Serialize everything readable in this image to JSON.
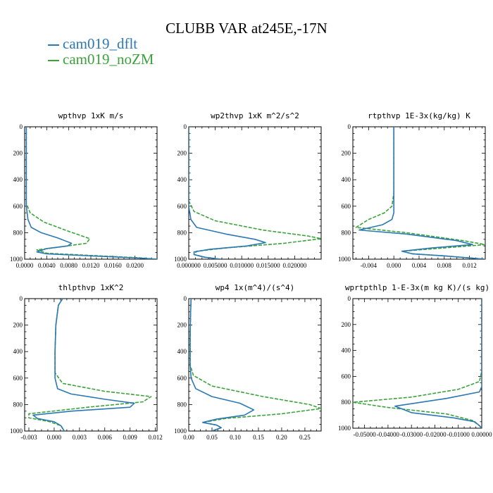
{
  "title": "CLUBB VAR at245E,-17N",
  "legend": [
    {
      "label": "cam019_dflt",
      "color": "#2a78b4",
      "dash": "solid"
    },
    {
      "label": "cam019_noZM",
      "color": "#3aa33a",
      "dash": "dashed"
    }
  ],
  "chart_data": [
    {
      "type": "line",
      "title": "wpthvp  1xK m/s",
      "xlim": [
        0,
        0.024
      ],
      "ylim": [
        1000,
        0
      ],
      "xticks": [
        "0.0000",
        "0.0040",
        "0.0080",
        "0.0120",
        "0.0160",
        "0.0200"
      ],
      "xtick_values": [
        0,
        0.004,
        0.008,
        0.012,
        0.016,
        0.02
      ],
      "yticks": [
        "0",
        "200",
        "400",
        "600",
        "800",
        "1000"
      ],
      "series": [
        {
          "name": "cam019_dflt",
          "points": [
            [
              0.0003,
              0
            ],
            [
              0.0003,
              400
            ],
            [
              0.0003,
              600
            ],
            [
              0.0006,
              700
            ],
            [
              0.0012,
              760
            ],
            [
              0.003,
              800
            ],
            [
              0.006,
              840
            ],
            [
              0.0085,
              880
            ],
            [
              0.0078,
              900
            ],
            [
              0.004,
              920
            ],
            [
              0.0022,
              945
            ],
            [
              0.004,
              960
            ],
            [
              0.012,
              975
            ],
            [
              0.021,
              992
            ],
            [
              0.024,
              1000
            ]
          ]
        },
        {
          "name": "cam019_noZM",
          "points": [
            [
              0.0003,
              0
            ],
            [
              0.0003,
              400
            ],
            [
              0.0003,
              580
            ],
            [
              0.001,
              650
            ],
            [
              0.0035,
              720
            ],
            [
              0.008,
              790
            ],
            [
              0.0118,
              845
            ],
            [
              0.0112,
              880
            ],
            [
              0.006,
              910
            ],
            [
              0.0022,
              930
            ],
            [
              0.004,
              955
            ],
            [
              0.012,
              972
            ],
            [
              0.021,
              990
            ],
            [
              0.024,
              1000
            ]
          ]
        }
      ]
    },
    {
      "type": "line",
      "title": "wp2thvp  1xK m^2/s^2",
      "xlim": [
        0,
        0.025
      ],
      "ylim": [
        1000,
        0
      ],
      "xticks": [
        "0.000000",
        "0.005000",
        "0.010000",
        "0.015000",
        "0.020000"
      ],
      "xtick_values": [
        0,
        0.005,
        0.01,
        0.015,
        0.02
      ],
      "yticks": [
        "0",
        "200",
        "400",
        "600",
        "800",
        "1000"
      ],
      "series": [
        {
          "name": "cam019_dflt",
          "points": [
            [
              0,
              0
            ],
            [
              0,
              400
            ],
            [
              0,
              600
            ],
            [
              0.0004,
              700
            ],
            [
              0.0015,
              760
            ],
            [
              0.007,
              810
            ],
            [
              0.0125,
              850
            ],
            [
              0.0145,
              875
            ],
            [
              0.011,
              900
            ],
            [
              0.004,
              925
            ],
            [
              0.001,
              945
            ],
            [
              0.001,
              965
            ],
            [
              0.003,
              985
            ],
            [
              0.006,
              1000
            ]
          ]
        },
        {
          "name": "cam019_noZM",
          "points": [
            [
              0,
              0
            ],
            [
              0,
              400
            ],
            [
              0,
              560
            ],
            [
              0.001,
              640
            ],
            [
              0.005,
              710
            ],
            [
              0.014,
              780
            ],
            [
              0.0225,
              825
            ],
            [
              0.025,
              845
            ],
            [
              0.018,
              880
            ],
            [
              0.007,
              915
            ],
            [
              0.0015,
              940
            ],
            [
              0.001,
              965
            ],
            [
              0.003,
              985
            ],
            [
              0.006,
              1000
            ]
          ]
        }
      ]
    },
    {
      "type": "line",
      "title": "rtpthvp  1E-3x(kg/kg) K",
      "xlim": [
        -0.0065,
        0.0145
      ],
      "ylim": [
        1000,
        0
      ],
      "xticks": [
        "-0.004",
        "0.000",
        "0.004",
        "0.008",
        "0.012"
      ],
      "xtick_values": [
        -0.004,
        0,
        0.004,
        0.008,
        0.012
      ],
      "yticks": [
        "0",
        "200",
        "400",
        "600",
        "800",
        "1000"
      ],
      "series": [
        {
          "name": "cam019_dflt",
          "points": [
            [
              0,
              0
            ],
            [
              0,
              300
            ],
            [
              0,
              500
            ],
            [
              0,
              650
            ],
            [
              -0.0003,
              700
            ],
            [
              -0.0018,
              740
            ],
            [
              -0.0055,
              780
            ],
            [
              0.002,
              810
            ],
            [
              0.01,
              860
            ],
            [
              0.0125,
              890
            ],
            [
              0.006,
              915
            ],
            [
              0.0013,
              940
            ],
            [
              0.003,
              960
            ],
            [
              0.008,
              975
            ],
            [
              0.0145,
              1000
            ]
          ]
        },
        {
          "name": "cam019_noZM",
          "points": [
            [
              0,
              0
            ],
            [
              0,
              300
            ],
            [
              0,
              500
            ],
            [
              -0.0003,
              600
            ],
            [
              -0.0015,
              650
            ],
            [
              -0.004,
              700
            ],
            [
              -0.006,
              760
            ],
            [
              0.002,
              800
            ],
            [
              0.011,
              860
            ],
            [
              0.0145,
              890
            ],
            [
              0.008,
              915
            ],
            [
              0.0013,
              940
            ],
            [
              0.003,
              960
            ],
            [
              0.008,
              975
            ],
            [
              0.0145,
              1000
            ]
          ]
        }
      ]
    },
    {
      "type": "line",
      "title": "thlpthvp  1xK^2",
      "xlim": [
        -0.0035,
        0.0122
      ],
      "ylim": [
        1000,
        0
      ],
      "xticks": [
        "-0.003",
        "0.000",
        "0.003",
        "0.006",
        "0.009",
        "0.012"
      ],
      "xtick_values": [
        -0.003,
        0,
        0.003,
        0.006,
        0.009,
        0.012
      ],
      "yticks": [
        "0",
        "200",
        "400",
        "600",
        "800",
        "1000"
      ],
      "series": [
        {
          "name": "cam019_dflt",
          "points": [
            [
              0.001,
              0
            ],
            [
              0.0005,
              50
            ],
            [
              0.0002,
              200
            ],
            [
              0.0001,
              400
            ],
            [
              0.0001,
              600
            ],
            [
              0.0004,
              680
            ],
            [
              0.002,
              720
            ],
            [
              0.006,
              760
            ],
            [
              0.0095,
              790
            ],
            [
              0.009,
              820
            ],
            [
              0.002,
              850
            ],
            [
              -0.0025,
              880
            ],
            [
              -0.002,
              905
            ],
            [
              0,
              930
            ],
            [
              0.0008,
              960
            ],
            [
              0.0012,
              1000
            ]
          ]
        },
        {
          "name": "cam019_noZM",
          "points": [
            [
              0.001,
              0
            ],
            [
              0.0005,
              50
            ],
            [
              0.0002,
              200
            ],
            [
              0.0001,
              400
            ],
            [
              0.0001,
              560
            ],
            [
              0.001,
              640
            ],
            [
              0.006,
              700
            ],
            [
              0.0115,
              740
            ],
            [
              0.0105,
              780
            ],
            [
              0.004,
              820
            ],
            [
              -0.003,
              870
            ],
            [
              -0.003,
              900
            ],
            [
              -0.0005,
              930
            ],
            [
              0.0008,
              960
            ],
            [
              0.0012,
              1000
            ]
          ]
        }
      ]
    },
    {
      "type": "line",
      "title": "wp4  1x(m^4)/(s^4)",
      "xlim": [
        0,
        0.285
      ],
      "ylim": [
        1000,
        0
      ],
      "xticks": [
        "0.00",
        "0.05",
        "0.10",
        "0.15",
        "0.20",
        "0.25"
      ],
      "xtick_values": [
        0,
        0.05,
        0.1,
        0.15,
        0.2,
        0.25
      ],
      "yticks": [
        "0",
        "200",
        "400",
        "600",
        "800",
        "1000"
      ],
      "series": [
        {
          "name": "cam019_dflt",
          "points": [
            [
              0.005,
              0
            ],
            [
              0.004,
              100
            ],
            [
              0.003,
              300
            ],
            [
              0.003,
              500
            ],
            [
              0.005,
              600
            ],
            [
              0.015,
              680
            ],
            [
              0.05,
              740
            ],
            [
              0.11,
              790
            ],
            [
              0.14,
              840
            ],
            [
              0.12,
              880
            ],
            [
              0.06,
              910
            ],
            [
              0.03,
              935
            ],
            [
              0.06,
              955
            ],
            [
              0.07,
              975
            ],
            [
              0.05,
              1000
            ]
          ]
        },
        {
          "name": "cam019_noZM",
          "points": [
            [
              0.005,
              0
            ],
            [
              0.004,
              100
            ],
            [
              0.003,
              300
            ],
            [
              0.003,
              500
            ],
            [
              0.01,
              580
            ],
            [
              0.05,
              660
            ],
            [
              0.16,
              740
            ],
            [
              0.26,
              800
            ],
            [
              0.285,
              830
            ],
            [
              0.2,
              870
            ],
            [
              0.08,
              905
            ],
            [
              0.03,
              935
            ],
            [
              0.06,
              955
            ],
            [
              0.07,
              975
            ],
            [
              0.05,
              1000
            ]
          ]
        }
      ]
    },
    {
      "type": "line",
      "title": "wprtpthlp  1-E-3x(m kg K)/(s kg)",
      "xlim": [
        -0.055,
        0
      ],
      "ylim": [
        1000,
        0
      ],
      "xticks": [
        "-0.05000",
        "-0.04000",
        "-0.03000",
        "-0.02000",
        "-0.01000",
        "0.00000"
      ],
      "xtick_values": [
        -0.05,
        -0.04,
        -0.03,
        -0.02,
        -0.01,
        0
      ],
      "yticks": [
        "0",
        "200",
        "400",
        "600",
        "800",
        "1000"
      ],
      "series": [
        {
          "name": "cam019_dflt",
          "points": [
            [
              0,
              0
            ],
            [
              0,
              400
            ],
            [
              0,
              600
            ],
            [
              0,
              680
            ],
            [
              -0.001,
              720
            ],
            [
              -0.015,
              770
            ],
            [
              -0.037,
              830
            ],
            [
              -0.03,
              880
            ],
            [
              -0.012,
              920
            ],
            [
              -0.003,
              950
            ],
            [
              -0.001,
              980
            ],
            [
              0,
              1000
            ]
          ]
        },
        {
          "name": "cam019_noZM",
          "points": [
            [
              0,
              0
            ],
            [
              0,
              400
            ],
            [
              0,
              560
            ],
            [
              -0.001,
              640
            ],
            [
              -0.01,
              700
            ],
            [
              -0.03,
              760
            ],
            [
              -0.055,
              800
            ],
            [
              -0.04,
              840
            ],
            [
              -0.015,
              890
            ],
            [
              -0.004,
              940
            ],
            [
              -0.001,
              980
            ],
            [
              0,
              1000
            ]
          ]
        }
      ]
    }
  ]
}
